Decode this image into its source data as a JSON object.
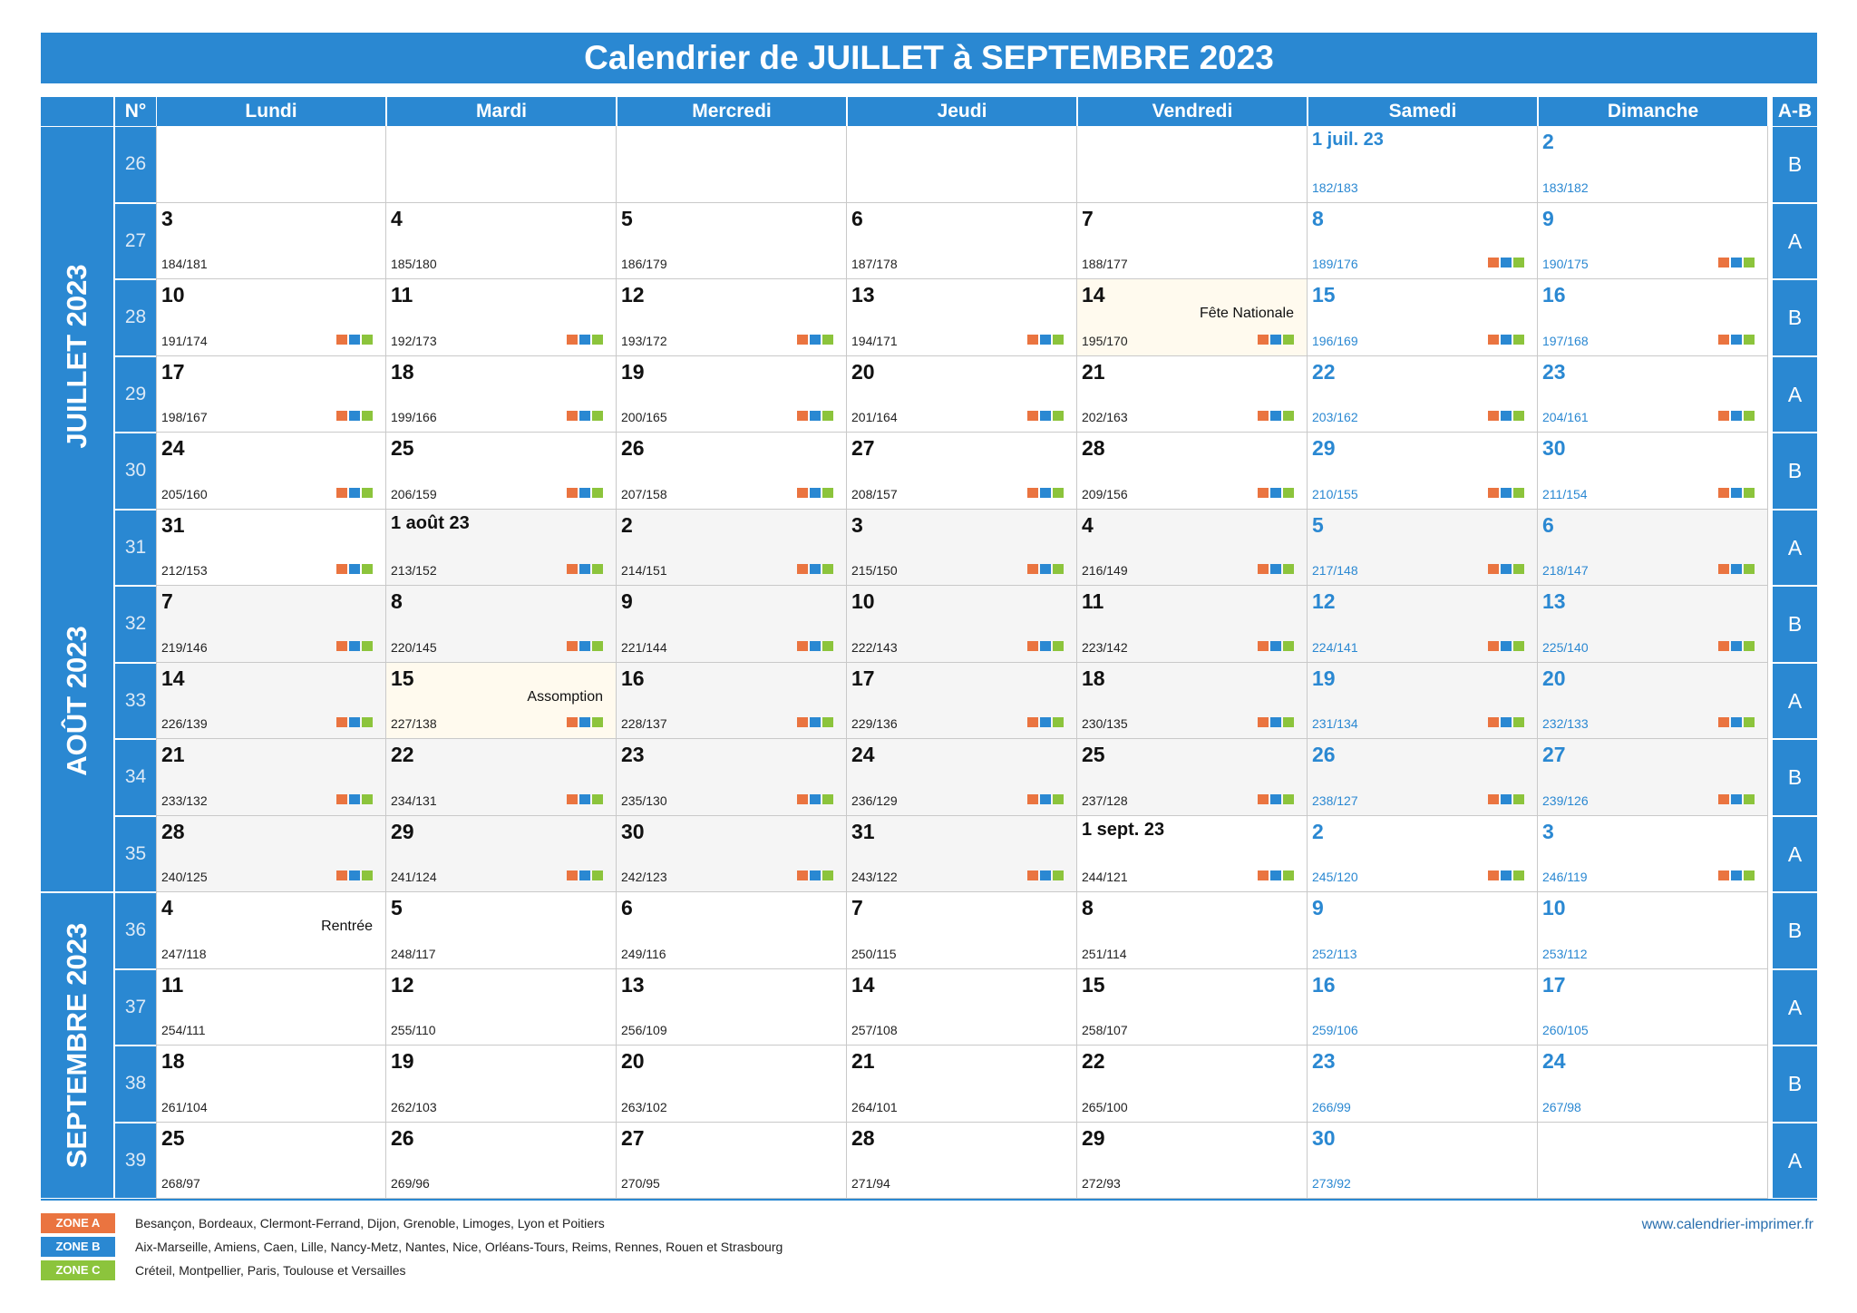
{
  "title": "Calendrier de JUILLET à SEPTEMBRE 2023",
  "headers": {
    "num": "N°",
    "days": [
      "Lundi",
      "Mardi",
      "Mercredi",
      "Jeudi",
      "Vendredi",
      "Samedi",
      "Dimanche"
    ],
    "ab": "A-B"
  },
  "months": [
    {
      "label": "JUILLET 2023"
    },
    {
      "label": "AOÛT 2023"
    },
    {
      "label": "SEPTEMBRE 2023"
    }
  ],
  "zone_colors": {
    "A": "#ea7440",
    "B": "#2a88d2",
    "C": "#8cc43c"
  },
  "weeks": [
    {
      "num": "26",
      "ab": "B",
      "days": [
        null,
        null,
        null,
        null,
        null,
        {
          "d": "1 juil. 23",
          "c": "182/183",
          "m": "jul"
        },
        {
          "d": "2",
          "c": "183/182",
          "m": "jul"
        }
      ]
    },
    {
      "num": "27",
      "ab": "A",
      "days": [
        {
          "d": "3",
          "c": "184/181",
          "m": "jul"
        },
        {
          "d": "4",
          "c": "185/180",
          "m": "jul"
        },
        {
          "d": "5",
          "c": "186/179",
          "m": "jul"
        },
        {
          "d": "6",
          "c": "187/178",
          "m": "jul"
        },
        {
          "d": "7",
          "c": "188/177",
          "m": "jul"
        },
        {
          "d": "8",
          "c": "189/176",
          "m": "jul",
          "z": true
        },
        {
          "d": "9",
          "c": "190/175",
          "m": "jul",
          "z": true
        }
      ]
    },
    {
      "num": "28",
      "ab": "B",
      "days": [
        {
          "d": "10",
          "c": "191/174",
          "m": "jul",
          "z": true
        },
        {
          "d": "11",
          "c": "192/173",
          "m": "jul",
          "z": true
        },
        {
          "d": "12",
          "c": "193/172",
          "m": "jul",
          "z": true
        },
        {
          "d": "13",
          "c": "194/171",
          "m": "jul",
          "z": true
        },
        {
          "d": "14",
          "c": "195/170",
          "m": "jul",
          "z": true,
          "h": "Fête Nationale"
        },
        {
          "d": "15",
          "c": "196/169",
          "m": "jul",
          "z": true
        },
        {
          "d": "16",
          "c": "197/168",
          "m": "jul",
          "z": true
        }
      ]
    },
    {
      "num": "29",
      "ab": "A",
      "days": [
        {
          "d": "17",
          "c": "198/167",
          "m": "jul",
          "z": true
        },
        {
          "d": "18",
          "c": "199/166",
          "m": "jul",
          "z": true
        },
        {
          "d": "19",
          "c": "200/165",
          "m": "jul",
          "z": true
        },
        {
          "d": "20",
          "c": "201/164",
          "m": "jul",
          "z": true
        },
        {
          "d": "21",
          "c": "202/163",
          "m": "jul",
          "z": true
        },
        {
          "d": "22",
          "c": "203/162",
          "m": "jul",
          "z": true
        },
        {
          "d": "23",
          "c": "204/161",
          "m": "jul",
          "z": true
        }
      ]
    },
    {
      "num": "30",
      "ab": "B",
      "days": [
        {
          "d": "24",
          "c": "205/160",
          "m": "jul",
          "z": true
        },
        {
          "d": "25",
          "c": "206/159",
          "m": "jul",
          "z": true
        },
        {
          "d": "26",
          "c": "207/158",
          "m": "jul",
          "z": true
        },
        {
          "d": "27",
          "c": "208/157",
          "m": "jul",
          "z": true
        },
        {
          "d": "28",
          "c": "209/156",
          "m": "jul",
          "z": true
        },
        {
          "d": "29",
          "c": "210/155",
          "m": "jul",
          "z": true
        },
        {
          "d": "30",
          "c": "211/154",
          "m": "jul",
          "z": true
        }
      ]
    },
    {
      "num": "31",
      "ab": "A",
      "days": [
        {
          "d": "31",
          "c": "212/153",
          "m": "jul",
          "z": true
        },
        {
          "d": "1 août 23",
          "c": "213/152",
          "m": "aug",
          "z": true
        },
        {
          "d": "2",
          "c": "214/151",
          "m": "aug",
          "z": true
        },
        {
          "d": "3",
          "c": "215/150",
          "m": "aug",
          "z": true
        },
        {
          "d": "4",
          "c": "216/149",
          "m": "aug",
          "z": true
        },
        {
          "d": "5",
          "c": "217/148",
          "m": "aug",
          "z": true
        },
        {
          "d": "6",
          "c": "218/147",
          "m": "aug",
          "z": true
        }
      ]
    },
    {
      "num": "32",
      "ab": "B",
      "days": [
        {
          "d": "7",
          "c": "219/146",
          "m": "aug",
          "z": true
        },
        {
          "d": "8",
          "c": "220/145",
          "m": "aug",
          "z": true
        },
        {
          "d": "9",
          "c": "221/144",
          "m": "aug",
          "z": true
        },
        {
          "d": "10",
          "c": "222/143",
          "m": "aug",
          "z": true
        },
        {
          "d": "11",
          "c": "223/142",
          "m": "aug",
          "z": true
        },
        {
          "d": "12",
          "c": "224/141",
          "m": "aug",
          "z": true
        },
        {
          "d": "13",
          "c": "225/140",
          "m": "aug",
          "z": true
        }
      ]
    },
    {
      "num": "33",
      "ab": "A",
      "days": [
        {
          "d": "14",
          "c": "226/139",
          "m": "aug",
          "z": true
        },
        {
          "d": "15",
          "c": "227/138",
          "m": "aug",
          "z": true,
          "h": "Assomption"
        },
        {
          "d": "16",
          "c": "228/137",
          "m": "aug",
          "z": true
        },
        {
          "d": "17",
          "c": "229/136",
          "m": "aug",
          "z": true
        },
        {
          "d": "18",
          "c": "230/135",
          "m": "aug",
          "z": true
        },
        {
          "d": "19",
          "c": "231/134",
          "m": "aug",
          "z": true
        },
        {
          "d": "20",
          "c": "232/133",
          "m": "aug",
          "z": true
        }
      ]
    },
    {
      "num": "34",
      "ab": "B",
      "days": [
        {
          "d": "21",
          "c": "233/132",
          "m": "aug",
          "z": true
        },
        {
          "d": "22",
          "c": "234/131",
          "m": "aug",
          "z": true
        },
        {
          "d": "23",
          "c": "235/130",
          "m": "aug",
          "z": true
        },
        {
          "d": "24",
          "c": "236/129",
          "m": "aug",
          "z": true
        },
        {
          "d": "25",
          "c": "237/128",
          "m": "aug",
          "z": true
        },
        {
          "d": "26",
          "c": "238/127",
          "m": "aug",
          "z": true
        },
        {
          "d": "27",
          "c": "239/126",
          "m": "aug",
          "z": true
        }
      ]
    },
    {
      "num": "35",
      "ab": "A",
      "days": [
        {
          "d": "28",
          "c": "240/125",
          "m": "aug",
          "z": true
        },
        {
          "d": "29",
          "c": "241/124",
          "m": "aug",
          "z": true
        },
        {
          "d": "30",
          "c": "242/123",
          "m": "aug",
          "z": true
        },
        {
          "d": "31",
          "c": "243/122",
          "m": "aug",
          "z": true
        },
        {
          "d": "1 sept. 23",
          "c": "244/121",
          "m": "sep",
          "z": true
        },
        {
          "d": "2",
          "c": "245/120",
          "m": "sep",
          "z": true
        },
        {
          "d": "3",
          "c": "246/119",
          "m": "sep",
          "z": true
        }
      ]
    },
    {
      "num": "36",
      "ab": "B",
      "days": [
        {
          "d": "4",
          "c": "247/118",
          "m": "sep",
          "h": "Rentrée"
        },
        {
          "d": "5",
          "c": "248/117",
          "m": "sep"
        },
        {
          "d": "6",
          "c": "249/116",
          "m": "sep"
        },
        {
          "d": "7",
          "c": "250/115",
          "m": "sep"
        },
        {
          "d": "8",
          "c": "251/114",
          "m": "sep"
        },
        {
          "d": "9",
          "c": "252/113",
          "m": "sep"
        },
        {
          "d": "10",
          "c": "253/112",
          "m": "sep"
        }
      ]
    },
    {
      "num": "37",
      "ab": "A",
      "days": [
        {
          "d": "11",
          "c": "254/111",
          "m": "sep"
        },
        {
          "d": "12",
          "c": "255/110",
          "m": "sep"
        },
        {
          "d": "13",
          "c": "256/109",
          "m": "sep"
        },
        {
          "d": "14",
          "c": "257/108",
          "m": "sep"
        },
        {
          "d": "15",
          "c": "258/107",
          "m": "sep"
        },
        {
          "d": "16",
          "c": "259/106",
          "m": "sep"
        },
        {
          "d": "17",
          "c": "260/105",
          "m": "sep"
        }
      ]
    },
    {
      "num": "38",
      "ab": "B",
      "days": [
        {
          "d": "18",
          "c": "261/104",
          "m": "sep"
        },
        {
          "d": "19",
          "c": "262/103",
          "m": "sep"
        },
        {
          "d": "20",
          "c": "263/102",
          "m": "sep"
        },
        {
          "d": "21",
          "c": "264/101",
          "m": "sep"
        },
        {
          "d": "22",
          "c": "265/100",
          "m": "sep"
        },
        {
          "d": "23",
          "c": "266/99",
          "m": "sep"
        },
        {
          "d": "24",
          "c": "267/98",
          "m": "sep"
        }
      ]
    },
    {
      "num": "39",
      "ab": "A",
      "days": [
        {
          "d": "25",
          "c": "268/97",
          "m": "sep"
        },
        {
          "d": "26",
          "c": "269/96",
          "m": "sep"
        },
        {
          "d": "27",
          "c": "270/95",
          "m": "sep"
        },
        {
          "d": "28",
          "c": "271/94",
          "m": "sep"
        },
        {
          "d": "29",
          "c": "272/93",
          "m": "sep"
        },
        {
          "d": "30",
          "c": "273/92",
          "m": "sep"
        },
        null
      ]
    }
  ],
  "legend": [
    {
      "label": "ZONE A",
      "color": "#ea7440",
      "text": "Besançon, Bordeaux, Clermont-Ferrand, Dijon, Grenoble, Limoges, Lyon et Poitiers"
    },
    {
      "label": "ZONE B",
      "color": "#2a88d2",
      "text": "Aix-Marseille, Amiens, Caen, Lille, Nancy-Metz, Nantes, Nice, Orléans-Tours, Reims, Rennes, Rouen et Strasbourg"
    },
    {
      "label": "ZONE C",
      "color": "#8cc43c",
      "text": "Créteil, Montpellier, Paris, Toulouse et Versailles"
    }
  ],
  "website": "www.calendrier-imprimer.fr"
}
